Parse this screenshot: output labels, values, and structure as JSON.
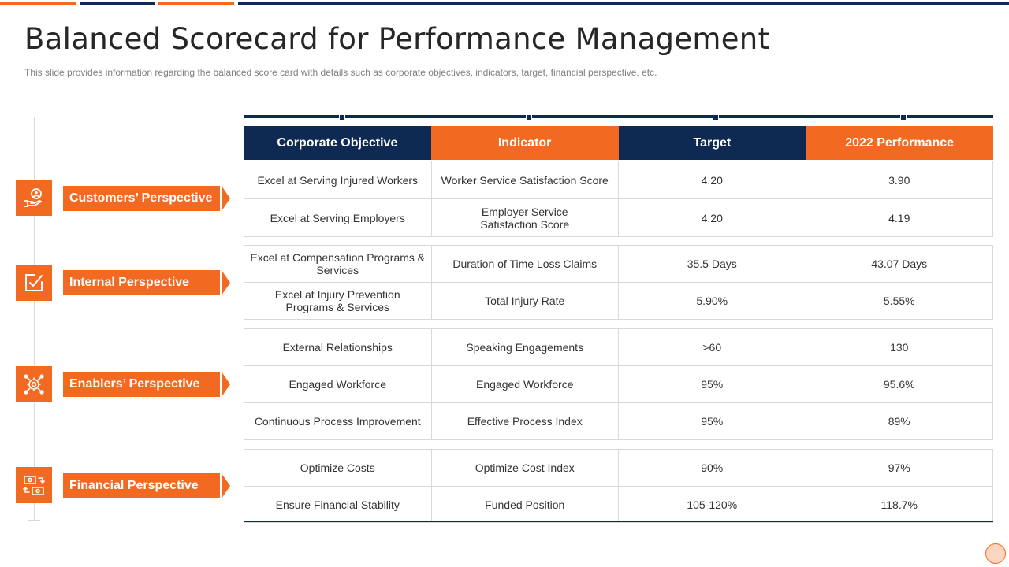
{
  "title": "Balanced Scorecard for Performance Management",
  "subtitle": "This slide provides information regarding the balanced score card with details such as corporate objectives, indicators, target, financial perspective, etc.",
  "colors": {
    "navy": "#0e2a52",
    "orange": "#f26a21",
    "border": "#d9d9d9"
  },
  "headers": [
    "Corporate Objective",
    "Indicator",
    "Target",
    "2022 Performance"
  ],
  "perspectives": [
    {
      "label": "Customers’ Perspective",
      "icon": "hand-user-icon"
    },
    {
      "label": "Internal Perspective",
      "icon": "check-edit-icon"
    },
    {
      "label": "Enablers’ Perspective",
      "icon": "gear-network-icon"
    },
    {
      "label": "Financial Perspective",
      "icon": "money-exchange-icon"
    }
  ],
  "groups": [
    {
      "rows": [
        {
          "objective": "Excel at Serving Injured Workers",
          "indicator": "Worker Service Satisfaction Score",
          "target": "4.20",
          "performance": "3.90"
        },
        {
          "objective": "Excel at Serving Employers",
          "indicator": "Employer Service Satisfaction Score",
          "target": "4.20",
          "performance": "4.19"
        }
      ]
    },
    {
      "rows": [
        {
          "objective": "Excel at  Compensation Programs & Services",
          "indicator": "Duration of Time Loss Claims",
          "target": "35.5 Days",
          "performance": "43.07 Days"
        },
        {
          "objective": "Excel at  Injury Prevention Programs & Services",
          "indicator": "Total Injury Rate",
          "target": "5.90%",
          "performance": "5.55%"
        }
      ]
    },
    {
      "rows": [
        {
          "objective": "External Relationships",
          "indicator": "Speaking Engagements",
          "target": ">60",
          "performance": "130"
        },
        {
          "objective": "Engaged Workforce",
          "indicator": "Engaged Workforce",
          "target": "95%",
          "performance": "95.6%"
        },
        {
          "objective": "Continuous Process Improvement",
          "indicator": "Effective Process Index",
          "target": "95%",
          "performance": "89%"
        }
      ]
    },
    {
      "rows": [
        {
          "objective": "Optimize Costs",
          "indicator": "Optimize Cost Index",
          "target": "90%",
          "performance": "97%"
        },
        {
          "objective": "Ensure Financial Stability",
          "indicator": "Funded Position",
          "target": "105-120%",
          "performance": "118.7%"
        }
      ]
    }
  ]
}
